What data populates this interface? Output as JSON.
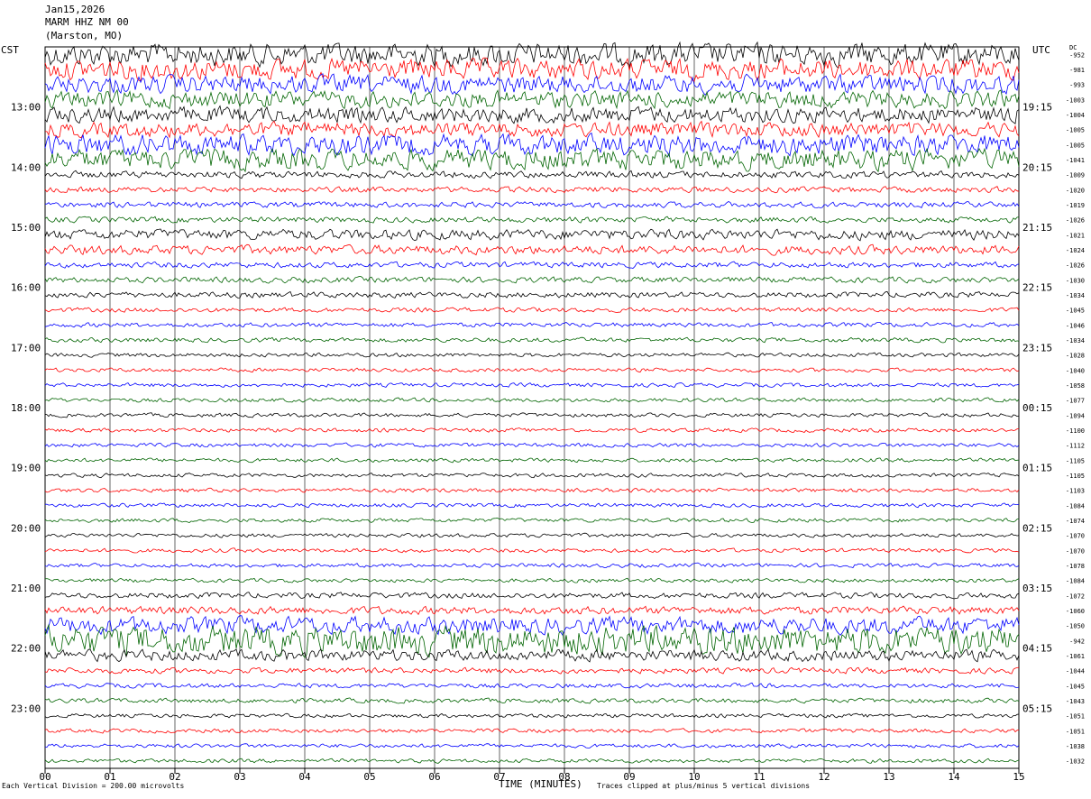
{
  "header": {
    "date": "Jan15,2026",
    "station": "MARM HHZ NM 00",
    "location": "(Marston, MO)"
  },
  "left_timezone": "CST",
  "right_timezone": "UTC",
  "dc_label": "DC",
  "footer": {
    "scale_note": "Each Vertical Division =  200.00 microvolts",
    "xlabel": "TIME (MINUTES)",
    "clip_note": "Traces clipped at plus/minus 5 vertical divisions"
  },
  "colors": {
    "trace_cycle": [
      "#000000",
      "#ff0000",
      "#0000ff",
      "#006400"
    ],
    "grid": "#000000"
  },
  "chart_data": {
    "type": "line",
    "title": "",
    "xlabel": "TIME (MINUTES)",
    "ylabel": "",
    "xlim": [
      0,
      15
    ],
    "x_ticks": [
      "00",
      "01",
      "02",
      "03",
      "04",
      "05",
      "06",
      "07",
      "08",
      "09",
      "10",
      "11",
      "12",
      "13",
      "14",
      "15"
    ],
    "left_hour_labels": [
      "13:00",
      "14:00",
      "15:00",
      "16:00",
      "17:00",
      "18:00",
      "19:00",
      "20:00",
      "21:00",
      "22:00",
      "23:00"
    ],
    "right_hour_labels": [
      "19:15",
      "20:15",
      "21:15",
      "22:15",
      "23:15",
      "00:15",
      "01:15",
      "02:15",
      "03:15",
      "04:15",
      "05:15"
    ],
    "dc_offsets": [
      "-952",
      "-981",
      "-993",
      "-1003",
      "-1004",
      "-1005",
      "-1005",
      "-1041",
      "-1009",
      "-1020",
      "-1019",
      "-1026",
      "-1021",
      "-1024",
      "-1026",
      "-1030",
      "-1034",
      "-1045",
      "-1046",
      "-1034",
      "-1028",
      "-1040",
      "-1058",
      "-1077",
      "-1094",
      "-1100",
      "-1112",
      "-1105",
      "-1105",
      "-1103",
      "-1084",
      "-1074",
      "-1070",
      "-1070",
      "-1078",
      "-1084",
      "-1072",
      "-1060",
      "-1050",
      "-942",
      "-1061",
      "-1044",
      "-1045",
      "-1043",
      "-1051",
      "-1051",
      "-1038",
      "-1032"
    ],
    "trace_amplitude": [
      2.0,
      1.8,
      1.6,
      1.5,
      1.4,
      1.3,
      1.8,
      1.8,
      0.6,
      0.5,
      0.5,
      0.5,
      0.9,
      0.8,
      0.5,
      0.5,
      0.5,
      0.4,
      0.4,
      0.4,
      0.35,
      0.35,
      0.35,
      0.35,
      0.35,
      0.35,
      0.35,
      0.35,
      0.35,
      0.35,
      0.35,
      0.35,
      0.35,
      0.35,
      0.35,
      0.35,
      0.5,
      0.7,
      1.5,
      2.5,
      1.0,
      0.5,
      0.4,
      0.4,
      0.35,
      0.35,
      0.35,
      0.35
    ],
    "grid": true
  }
}
